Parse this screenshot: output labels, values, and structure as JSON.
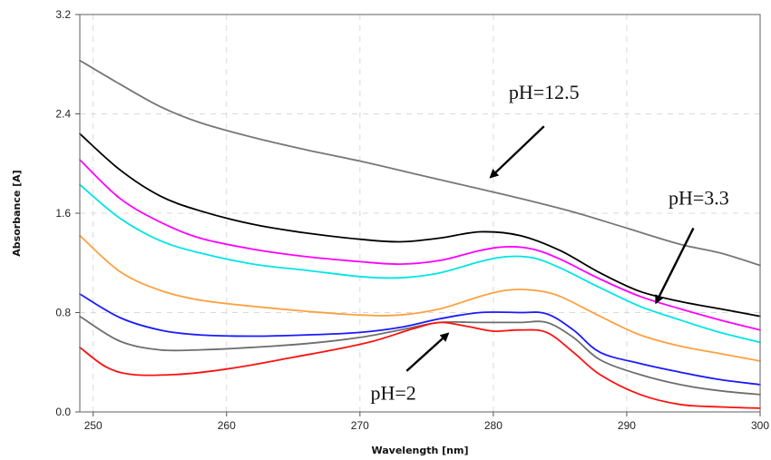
{
  "chart_data": {
    "type": "line",
    "title": "",
    "xlabel": "Wavelength [nm]",
    "ylabel": "Absorbance [A]",
    "xlim": [
      249,
      300
    ],
    "ylim": [
      0,
      3.2
    ],
    "xticks": [
      250,
      260,
      270,
      280,
      290,
      300
    ],
    "yticks": [
      0.0,
      0.8,
      1.6,
      2.4,
      3.2
    ],
    "ytick_labels": [
      "0.0",
      "0.8",
      "1.6",
      "2.4",
      "3.2"
    ],
    "grid": true,
    "series": [
      {
        "color": "#777777",
        "x": [
          249,
          252,
          255,
          258,
          262,
          266,
          270,
          274,
          278,
          282,
          286,
          290,
          294,
          297,
          300
        ],
        "y": [
          2.83,
          2.64,
          2.46,
          2.33,
          2.21,
          2.11,
          2.02,
          1.92,
          1.82,
          1.72,
          1.61,
          1.48,
          1.35,
          1.28,
          1.18
        ]
      },
      {
        "color": "#000000",
        "x": [
          249,
          252,
          255,
          258,
          262,
          266,
          270,
          273,
          276,
          279,
          282,
          285,
          288,
          291,
          294,
          297,
          300
        ],
        "y": [
          2.24,
          1.95,
          1.74,
          1.62,
          1.51,
          1.44,
          1.39,
          1.37,
          1.4,
          1.45,
          1.42,
          1.3,
          1.12,
          0.97,
          0.89,
          0.83,
          0.77
        ]
      },
      {
        "color": "#ff00ff",
        "x": [
          249,
          252,
          255,
          258,
          262,
          266,
          270,
          273,
          276,
          279,
          281,
          283,
          285,
          288,
          291,
          294,
          297,
          300
        ],
        "y": [
          2.03,
          1.72,
          1.53,
          1.4,
          1.31,
          1.25,
          1.21,
          1.19,
          1.22,
          1.3,
          1.33,
          1.31,
          1.23,
          1.07,
          0.93,
          0.83,
          0.74,
          0.66
        ]
      },
      {
        "color": "#00e5e5",
        "x": [
          249,
          252,
          255,
          258,
          262,
          266,
          270,
          273,
          276,
          279,
          281,
          283,
          285,
          288,
          291,
          294,
          297,
          300
        ],
        "y": [
          1.83,
          1.56,
          1.38,
          1.28,
          1.19,
          1.14,
          1.09,
          1.08,
          1.12,
          1.21,
          1.25,
          1.24,
          1.16,
          1.0,
          0.85,
          0.74,
          0.64,
          0.56
        ]
      },
      {
        "color": "#ffa040",
        "x": [
          249,
          252,
          255,
          258,
          262,
          266,
          270,
          273,
          276,
          279,
          281,
          283,
          285,
          288,
          291,
          294,
          297,
          300
        ],
        "y": [
          1.42,
          1.13,
          0.98,
          0.9,
          0.85,
          0.81,
          0.78,
          0.78,
          0.83,
          0.93,
          0.98,
          0.98,
          0.93,
          0.77,
          0.62,
          0.53,
          0.47,
          0.41
        ]
      },
      {
        "color": "#1a1aff",
        "x": [
          249,
          252,
          255,
          258,
          262,
          266,
          270,
          273,
          276,
          279,
          282,
          284,
          286,
          288,
          291,
          294,
          297,
          300
        ],
        "y": [
          0.95,
          0.76,
          0.66,
          0.62,
          0.61,
          0.62,
          0.64,
          0.68,
          0.75,
          0.8,
          0.8,
          0.79,
          0.66,
          0.48,
          0.39,
          0.32,
          0.26,
          0.22
        ]
      },
      {
        "color": "#6e6e6e",
        "x": [
          249,
          252,
          255,
          258,
          262,
          266,
          270,
          273,
          276,
          279,
          282,
          284,
          286,
          288,
          291,
          294,
          297,
          300
        ],
        "y": [
          0.77,
          0.57,
          0.5,
          0.5,
          0.52,
          0.55,
          0.6,
          0.66,
          0.72,
          0.72,
          0.72,
          0.72,
          0.6,
          0.42,
          0.3,
          0.22,
          0.17,
          0.14
        ]
      },
      {
        "color": "#ff1010",
        "x": [
          249,
          251,
          253,
          256,
          259,
          262,
          265,
          268,
          271,
          274,
          276,
          278,
          280,
          282,
          284,
          286,
          288,
          291,
          294,
          297,
          300
        ],
        "y": [
          0.52,
          0.36,
          0.3,
          0.3,
          0.33,
          0.38,
          0.44,
          0.5,
          0.57,
          0.67,
          0.72,
          0.69,
          0.65,
          0.66,
          0.64,
          0.48,
          0.3,
          0.14,
          0.06,
          0.04,
          0.03
        ]
      }
    ],
    "annotations": [
      {
        "text": "pH=12.5",
        "x": 283.8,
        "y": 2.52,
        "arrow_from": [
          283.8,
          2.3
        ],
        "arrow_to": [
          279.8,
          1.89
        ]
      },
      {
        "text": "pH=3.3",
        "x": 295.4,
        "y": 1.67,
        "arrow_from": [
          295.0,
          1.48
        ],
        "arrow_to": [
          292.2,
          0.88
        ]
      },
      {
        "text": "pH=2",
        "x": 272.5,
        "y": 0.1,
        "arrow_from": [
          273.5,
          0.33
        ],
        "arrow_to": [
          276.6,
          0.63
        ]
      }
    ]
  }
}
